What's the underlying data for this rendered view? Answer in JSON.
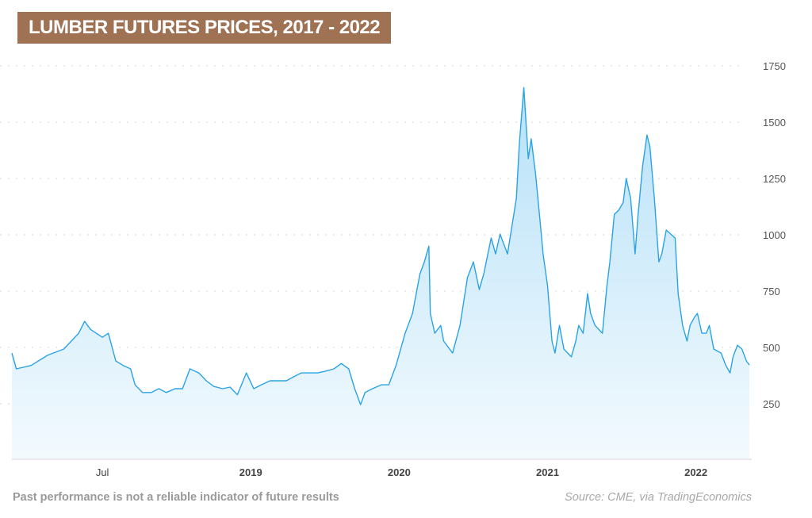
{
  "title": "LUMBER FUTURES PRICES, 2017 - 2022",
  "footer": {
    "disclaimer": "Past performance is not a reliable indicator of future results",
    "source": "Source: CME, via TradingEconomics"
  },
  "colors": {
    "line": "#2aa3e6",
    "fill_top": "#b7e1f8",
    "fill_bottom": "#f3fafe",
    "title_bg": "#a07254"
  },
  "chart_data": {
    "type": "area",
    "title": "LUMBER FUTURES PRICES, 2017 - 2022",
    "xlabel": "",
    "ylabel": "",
    "xlim": [
      2017.39,
      2022.36
    ],
    "ylim": [
      0,
      1750
    ],
    "grid": true,
    "y_axis_position": "right",
    "yticks": [
      250,
      500,
      750,
      1000,
      1250,
      1500,
      1750
    ],
    "xticks": [
      {
        "value": 2018.0,
        "label": "Jul"
      },
      {
        "value": 2019.0,
        "label": "2019"
      },
      {
        "value": 2020.0,
        "label": "2020"
      },
      {
        "value": 2021.0,
        "label": "2021"
      },
      {
        "value": 2022.0,
        "label": "2022"
      }
    ],
    "series": [
      {
        "name": "Lumber futures",
        "points": [
          [
            2017.39,
            475
          ],
          [
            2017.42,
            405
          ],
          [
            2017.52,
            420
          ],
          [
            2017.63,
            465
          ],
          [
            2017.74,
            493
          ],
          [
            2017.84,
            563
          ],
          [
            2017.88,
            616
          ],
          [
            2017.92,
            580
          ],
          [
            2018.0,
            545
          ],
          [
            2018.04,
            563
          ],
          [
            2018.09,
            440
          ],
          [
            2018.14,
            420
          ],
          [
            2018.19,
            405
          ],
          [
            2018.22,
            334
          ],
          [
            2018.27,
            300
          ],
          [
            2018.33,
            300
          ],
          [
            2018.38,
            317
          ],
          [
            2018.43,
            300
          ],
          [
            2018.49,
            317
          ],
          [
            2018.54,
            317
          ],
          [
            2018.59,
            405
          ],
          [
            2018.65,
            387
          ],
          [
            2018.7,
            352
          ],
          [
            2018.75,
            327
          ],
          [
            2018.81,
            317
          ],
          [
            2018.86,
            324
          ],
          [
            2018.91,
            290
          ],
          [
            2018.97,
            387
          ],
          [
            2019.02,
            317
          ],
          [
            2019.07,
            334
          ],
          [
            2019.13,
            352
          ],
          [
            2019.18,
            352
          ],
          [
            2019.24,
            352
          ],
          [
            2019.29,
            370
          ],
          [
            2019.34,
            387
          ],
          [
            2019.4,
            387
          ],
          [
            2019.45,
            387
          ],
          [
            2019.5,
            394
          ],
          [
            2019.56,
            405
          ],
          [
            2019.61,
            429
          ],
          [
            2019.66,
            405
          ],
          [
            2019.7,
            317
          ],
          [
            2019.74,
            246
          ],
          [
            2019.77,
            300
          ],
          [
            2019.82,
            317
          ],
          [
            2019.88,
            334
          ],
          [
            2019.93,
            334
          ],
          [
            2019.98,
            422
          ],
          [
            2020.04,
            563
          ],
          [
            2020.09,
            651
          ],
          [
            2020.14,
            827
          ],
          [
            2020.17,
            880
          ],
          [
            2020.2,
            950
          ],
          [
            2020.21,
            651
          ],
          [
            2020.24,
            563
          ],
          [
            2020.28,
            598
          ],
          [
            2020.3,
            528
          ],
          [
            2020.36,
            475
          ],
          [
            2020.41,
            598
          ],
          [
            2020.46,
            810
          ],
          [
            2020.5,
            880
          ],
          [
            2020.54,
            757
          ],
          [
            2020.57,
            827
          ],
          [
            2020.62,
            986
          ],
          [
            2020.65,
            915
          ],
          [
            2020.68,
            1003
          ],
          [
            2020.73,
            915
          ],
          [
            2020.79,
            1162
          ],
          [
            2020.81,
            1408
          ],
          [
            2020.84,
            1654
          ],
          [
            2020.87,
            1338
          ],
          [
            2020.89,
            1426
          ],
          [
            2020.92,
            1267
          ],
          [
            2020.95,
            1056
          ],
          [
            2020.97,
            915
          ],
          [
            2021.0,
            774
          ],
          [
            2021.03,
            528
          ],
          [
            2021.05,
            475
          ],
          [
            2021.08,
            598
          ],
          [
            2021.11,
            493
          ],
          [
            2021.16,
            458
          ],
          [
            2021.19,
            528
          ],
          [
            2021.21,
            598
          ],
          [
            2021.24,
            563
          ],
          [
            2021.27,
            739
          ],
          [
            2021.29,
            651
          ],
          [
            2021.32,
            598
          ],
          [
            2021.37,
            563
          ],
          [
            2021.4,
            774
          ],
          [
            2021.42,
            880
          ],
          [
            2021.45,
            1091
          ],
          [
            2021.48,
            1109
          ],
          [
            2021.51,
            1144
          ],
          [
            2021.53,
            1250
          ],
          [
            2021.56,
            1162
          ],
          [
            2021.59,
            915
          ],
          [
            2021.61,
            1091
          ],
          [
            2021.64,
            1303
          ],
          [
            2021.67,
            1443
          ],
          [
            2021.69,
            1391
          ],
          [
            2021.72,
            1162
          ],
          [
            2021.75,
            880
          ],
          [
            2021.77,
            915
          ],
          [
            2021.8,
            1021
          ],
          [
            2021.86,
            986
          ],
          [
            2021.88,
            739
          ],
          [
            2021.91,
            598
          ],
          [
            2021.94,
            528
          ],
          [
            2021.96,
            598
          ],
          [
            2021.99,
            634
          ],
          [
            2022.01,
            651
          ],
          [
            2022.04,
            563
          ],
          [
            2022.07,
            563
          ],
          [
            2022.09,
            598
          ],
          [
            2022.12,
            493
          ],
          [
            2022.17,
            475
          ],
          [
            2022.2,
            422
          ],
          [
            2022.23,
            387
          ],
          [
            2022.25,
            458
          ],
          [
            2022.28,
            510
          ],
          [
            2022.31,
            493
          ],
          [
            2022.34,
            440
          ],
          [
            2022.36,
            422
          ]
        ]
      }
    ]
  }
}
